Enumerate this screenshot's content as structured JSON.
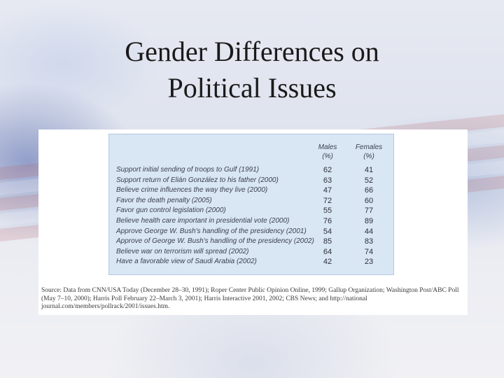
{
  "slide": {
    "title_line1": "Gender Differences on",
    "title_line2": "Political Issues"
  },
  "table": {
    "col_males": "Males",
    "col_males_unit": "(%)",
    "col_females": "Females",
    "col_females_unit": "(%)",
    "rows": [
      {
        "label": "Support initial sending of troops to Gulf (1991)",
        "males": "62",
        "females": "41"
      },
      {
        "label": "Support return of Elián González to his father (2000)",
        "males": "63",
        "females": "52"
      },
      {
        "label": "Believe crime influences the way they live (2000)",
        "males": "47",
        "females": "66"
      },
      {
        "label": "Favor the death penalty (2005)",
        "males": "72",
        "females": "60"
      },
      {
        "label": "Favor gun control legislation (2000)",
        "males": "55",
        "females": "77"
      },
      {
        "label": "Believe health care important in presidential vote (2000)",
        "males": "76",
        "females": "89"
      },
      {
        "label": "Approve George W. Bush's handling of the presidency (2001)",
        "males": "54",
        "females": "44"
      },
      {
        "label": "Approve of George W. Bush's handling of the presidency (2002)",
        "males": "85",
        "females": "83"
      },
      {
        "label": "Believe war on terrorism will spread (2002)",
        "males": "64",
        "females": "74"
      },
      {
        "label": "Have a favorable view of Saudi Arabia (2002)",
        "males": "42",
        "females": "23"
      }
    ]
  },
  "source_note": "Source: Data from CNN/USA Today (December 28–30, 1991); Roper Center Public Opinion Online, 1999; Gallup Organization; Washington Post/ABC Poll (May 7–10, 2000); Harris Poll February 22–March 3, 2001); Harris Interactive 2001, 2002; CBS News; and http://national journal.com/members/pollrack/2001/issues.htm."
}
